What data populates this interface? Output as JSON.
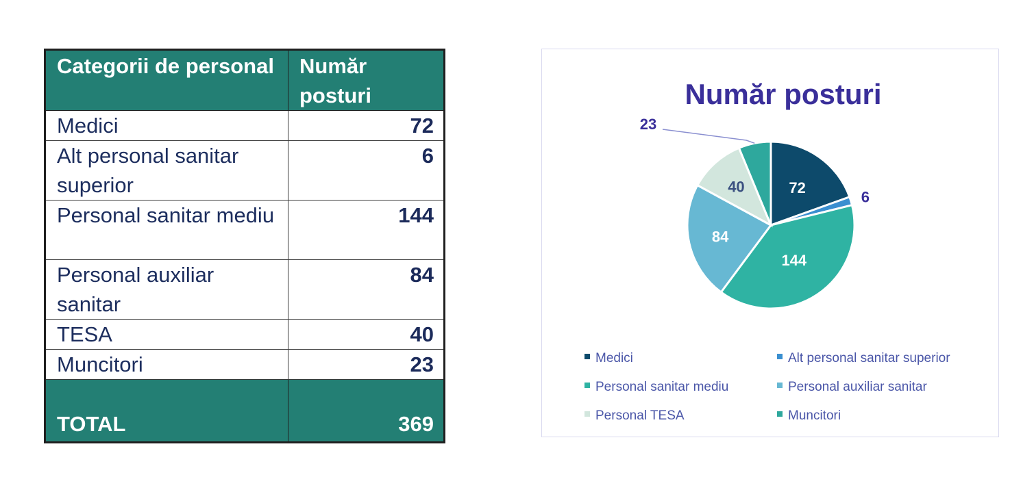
{
  "table": {
    "headers": [
      "Categorii de personal",
      "Număr posturi"
    ],
    "rows": [
      {
        "category": "Medici",
        "count": "72"
      },
      {
        "category": "Alt personal sanitar superior",
        "count": "6"
      },
      {
        "category": "Personal sanitar mediu",
        "count": "144"
      },
      {
        "category": "Personal auxiliar sanitar",
        "count": "84"
      },
      {
        "category": "TESA",
        "count": "40"
      },
      {
        "category": "Muncitori",
        "count": "23"
      }
    ],
    "total_label": "TOTAL",
    "total_value": "369"
  },
  "chart_data": {
    "type": "pie",
    "title": "Număr posturi",
    "categories": [
      "Medici",
      "Alt personal sanitar superior",
      "Personal sanitar mediu",
      "Personal auxiliar sanitar",
      "Personal TESA",
      "Muncitori"
    ],
    "values": [
      72,
      6,
      144,
      84,
      40,
      23
    ],
    "colors": [
      "#0d4a6b",
      "#3a8fd0",
      "#2fb3a3",
      "#67b8d3",
      "#d2e6dd",
      "#2ea89d"
    ],
    "data_labels": [
      "72",
      "6",
      "144",
      "84",
      "40",
      "23"
    ],
    "legend_position": "bottom"
  }
}
